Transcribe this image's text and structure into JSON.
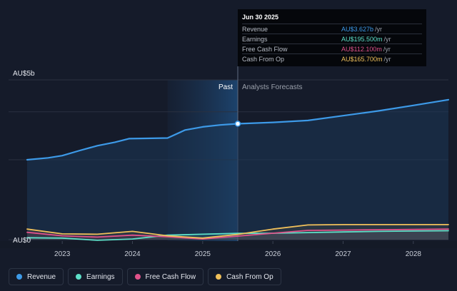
{
  "chart_data": {
    "type": "area",
    "y_axis": {
      "top_label": "AU$5b",
      "bottom_label": "AU$0",
      "ylim": [
        0,
        5
      ]
    },
    "x_ticks": [
      "2023",
      "2024",
      "2025",
      "2026",
      "2027",
      "2028"
    ],
    "xlim": [
      2022.5,
      2028.5
    ],
    "divider_x": 2025.5,
    "past_label": "Past",
    "forecast_label": "Analysts Forecasts",
    "series": [
      {
        "name": "Revenue",
        "color": "#3d9ae8",
        "points": [
          [
            2022.5,
            2.5
          ],
          [
            2022.8,
            2.56
          ],
          [
            2023.0,
            2.63
          ],
          [
            2023.25,
            2.79
          ],
          [
            2023.5,
            2.94
          ],
          [
            2023.75,
            3.05
          ],
          [
            2023.95,
            3.16
          ],
          [
            2024.2,
            3.17
          ],
          [
            2024.5,
            3.18
          ],
          [
            2024.75,
            3.43
          ],
          [
            2025.0,
            3.53
          ],
          [
            2025.25,
            3.59
          ],
          [
            2025.5,
            3.627
          ],
          [
            2026.0,
            3.67
          ],
          [
            2026.5,
            3.73
          ],
          [
            2027.0,
            3.88
          ],
          [
            2027.5,
            4.03
          ],
          [
            2028.0,
            4.2
          ],
          [
            2028.5,
            4.38
          ]
        ]
      },
      {
        "name": "Earnings",
        "color": "#5ee0c8",
        "points": [
          [
            2022.5,
            0.06
          ],
          [
            2023.0,
            0.05
          ],
          [
            2023.5,
            -0.02
          ],
          [
            2024.0,
            0.02
          ],
          [
            2024.5,
            0.14
          ],
          [
            2025.0,
            0.17
          ],
          [
            2025.5,
            0.1955
          ],
          [
            2026.0,
            0.2
          ],
          [
            2026.5,
            0.22
          ],
          [
            2027.0,
            0.24
          ],
          [
            2027.5,
            0.26
          ],
          [
            2028.0,
            0.27
          ],
          [
            2028.5,
            0.28
          ]
        ]
      },
      {
        "name": "Free Cash Flow",
        "color": "#e0528a",
        "points": [
          [
            2022.5,
            0.23
          ],
          [
            2023.0,
            0.12
          ],
          [
            2023.5,
            0.08
          ],
          [
            2024.0,
            0.14
          ],
          [
            2024.5,
            0.09
          ],
          [
            2025.0,
            0.02
          ],
          [
            2025.5,
            0.1121
          ],
          [
            2026.0,
            0.2
          ],
          [
            2026.5,
            0.29
          ],
          [
            2027.0,
            0.3
          ],
          [
            2027.5,
            0.31
          ],
          [
            2028.0,
            0.32
          ],
          [
            2028.5,
            0.33
          ]
        ]
      },
      {
        "name": "Cash From Op",
        "color": "#f0c05a",
        "points": [
          [
            2022.5,
            0.33
          ],
          [
            2023.0,
            0.18
          ],
          [
            2023.5,
            0.17
          ],
          [
            2024.0,
            0.26
          ],
          [
            2024.5,
            0.12
          ],
          [
            2025.0,
            0.05
          ],
          [
            2025.5,
            0.1657
          ],
          [
            2026.0,
            0.33
          ],
          [
            2026.5,
            0.46
          ],
          [
            2027.0,
            0.47
          ],
          [
            2027.5,
            0.47
          ],
          [
            2028.0,
            0.47
          ],
          [
            2028.5,
            0.47
          ]
        ]
      }
    ],
    "tooltip": {
      "date": "Jun 30 2025",
      "rows": [
        {
          "name": "Revenue",
          "value": "AU$3.627b",
          "unit": "/yr",
          "color": "#3d9ae8"
        },
        {
          "name": "Earnings",
          "value": "AU$195.500m",
          "unit": "/yr",
          "color": "#5ee0c8"
        },
        {
          "name": "Free Cash Flow",
          "value": "AU$112.100m",
          "unit": "/yr",
          "color": "#e0528a"
        },
        {
          "name": "Cash From Op",
          "value": "AU$165.700m",
          "unit": "/yr",
          "color": "#f0c05a"
        }
      ]
    },
    "legend": [
      {
        "name": "Revenue",
        "color": "#3d9ae8"
      },
      {
        "name": "Earnings",
        "color": "#5ee0c8"
      },
      {
        "name": "Free Cash Flow",
        "color": "#e0528a"
      },
      {
        "name": "Cash From Op",
        "color": "#f0c05a"
      }
    ]
  }
}
